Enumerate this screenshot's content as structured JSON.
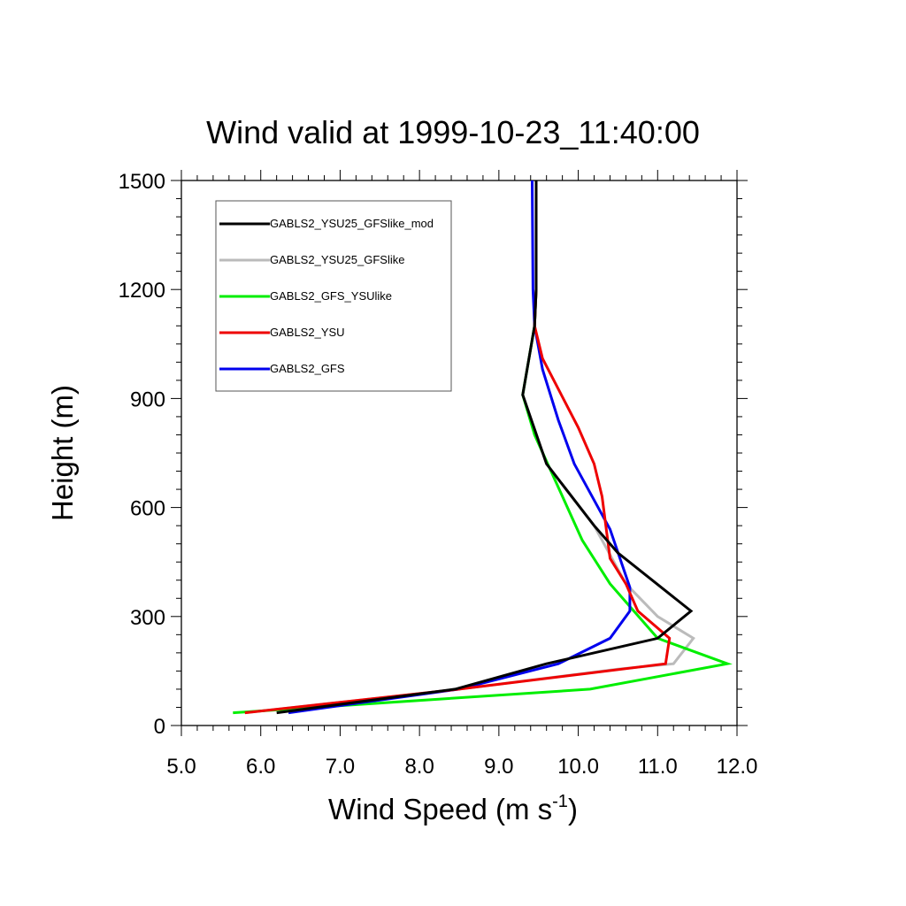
{
  "chart_data": {
    "type": "line",
    "title": "Wind valid at 1999-10-23_11:40:00",
    "xlabel": "Wind Speed (m s",
    "xlabel_sup": "-1",
    "xlabel_close": ")",
    "ylabel": "Height (m)",
    "xlim": [
      5.0,
      12.0
    ],
    "ylim": [
      0,
      1500
    ],
    "x_ticks": [
      5.0,
      6.0,
      7.0,
      8.0,
      9.0,
      10.0,
      11.0,
      12.0
    ],
    "x_tick_labels": [
      "5.0",
      "6.0",
      "7.0",
      "8.0",
      "9.0",
      "10.0",
      "11.0",
      "12.0"
    ],
    "y_ticks": [
      0,
      300,
      600,
      900,
      1200,
      1500
    ],
    "y_tick_labels": [
      "0",
      "300",
      "600",
      "900",
      "1200",
      "1500"
    ],
    "grid": false,
    "legend_position": "top-left",
    "series": [
      {
        "name": "GABLS2_YSU25_GFSlike_mod",
        "color": "#000000",
        "points": [
          [
            6.2,
            35
          ],
          [
            8.45,
            100
          ],
          [
            9.6,
            170
          ],
          [
            11.0,
            240
          ],
          [
            11.42,
            315
          ],
          [
            10.5,
            475
          ],
          [
            10.2,
            550
          ],
          [
            9.6,
            720
          ],
          [
            9.3,
            910
          ],
          [
            9.45,
            1100
          ],
          [
            9.47,
            1200
          ],
          [
            9.47,
            1500
          ]
        ]
      },
      {
        "name": "GABLS2_YSU25_GFSlike",
        "color": "#bbbbbb",
        "points": [
          [
            5.8,
            35
          ],
          [
            8.5,
            100
          ],
          [
            10.5,
            155
          ],
          [
            11.2,
            170
          ],
          [
            11.45,
            240
          ],
          [
            11.0,
            300
          ],
          [
            10.6,
            390
          ],
          [
            10.2,
            550
          ],
          [
            9.6,
            720
          ],
          [
            9.3,
            910
          ],
          [
            9.45,
            1100
          ],
          [
            9.47,
            1200
          ],
          [
            9.47,
            1500
          ]
        ]
      },
      {
        "name": "GABLS2_GFS_YSUlike",
        "color": "#00ee00",
        "points": [
          [
            5.65,
            35
          ],
          [
            10.15,
            100
          ],
          [
            11.88,
            170
          ],
          [
            11.0,
            240
          ],
          [
            10.7,
            315
          ],
          [
            10.4,
            390
          ],
          [
            10.05,
            510
          ],
          [
            9.45,
            800
          ],
          [
            9.3,
            910
          ],
          [
            9.45,
            1100
          ],
          [
            9.47,
            1200
          ],
          [
            9.47,
            1500
          ]
        ]
      },
      {
        "name": "GABLS2_YSU",
        "color": "#ee0000",
        "points": [
          [
            5.8,
            35
          ],
          [
            8.5,
            100
          ],
          [
            11.1,
            170
          ],
          [
            11.15,
            240
          ],
          [
            10.75,
            315
          ],
          [
            10.6,
            390
          ],
          [
            10.4,
            460
          ],
          [
            10.3,
            630
          ],
          [
            10.2,
            720
          ],
          [
            10.0,
            820
          ],
          [
            9.55,
            1010
          ],
          [
            9.45,
            1100
          ],
          [
            9.47,
            1200
          ],
          [
            9.47,
            1500
          ]
        ]
      },
      {
        "name": "GABLS2_GFS",
        "color": "#0000ee",
        "points": [
          [
            6.35,
            35
          ],
          [
            8.5,
            100
          ],
          [
            9.75,
            170
          ],
          [
            10.4,
            240
          ],
          [
            10.65,
            315
          ],
          [
            10.65,
            380
          ],
          [
            10.4,
            540
          ],
          [
            9.95,
            720
          ],
          [
            9.75,
            840
          ],
          [
            9.55,
            980
          ],
          [
            9.45,
            1100
          ],
          [
            9.43,
            1200
          ],
          [
            9.42,
            1500
          ]
        ]
      }
    ]
  }
}
